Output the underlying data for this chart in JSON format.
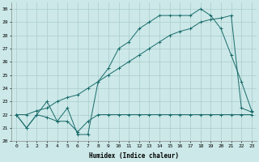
{
  "xlabel": "Humidex (Indice chaleur)",
  "bg_color": "#cce8e8",
  "grid_color": "#aacccc",
  "line_color": "#1a6b6b",
  "xlim": [
    -0.5,
    23.5
  ],
  "ylim": [
    20,
    30.5
  ],
  "xticks": [
    0,
    1,
    2,
    3,
    4,
    5,
    6,
    7,
    8,
    9,
    10,
    11,
    12,
    13,
    14,
    15,
    16,
    17,
    18,
    19,
    20,
    21,
    22,
    23
  ],
  "yticks": [
    20,
    21,
    22,
    23,
    24,
    25,
    26,
    27,
    28,
    29,
    30
  ],
  "line1_x": [
    0,
    1,
    2,
    3,
    4,
    5,
    6,
    7,
    8,
    9,
    10,
    11,
    12,
    13,
    14,
    15,
    16,
    17,
    18,
    19,
    20,
    21,
    22,
    23
  ],
  "line1_y": [
    22.0,
    21.0,
    22.0,
    21.8,
    21.5,
    21.5,
    20.7,
    21.5,
    22.0,
    22.0,
    22.0,
    22.0,
    22.0,
    22.0,
    22.0,
    22.0,
    22.0,
    22.0,
    22.0,
    22.0,
    22.0,
    22.0,
    22.0,
    22.0
  ],
  "line2_x": [
    0,
    1,
    2,
    3,
    4,
    5,
    6,
    7,
    8,
    9,
    10,
    11,
    12,
    13,
    14,
    15,
    16,
    17,
    18,
    19,
    20,
    21,
    22,
    23
  ],
  "line2_y": [
    22.0,
    21.0,
    22.0,
    23.0,
    21.5,
    22.5,
    20.5,
    20.5,
    24.5,
    25.5,
    27.0,
    27.5,
    28.5,
    29.0,
    29.5,
    29.5,
    29.5,
    29.5,
    30.0,
    29.5,
    28.5,
    26.5,
    24.5,
    22.3
  ],
  "line3_x": [
    0,
    1,
    2,
    3,
    4,
    5,
    6,
    7,
    8,
    9,
    10,
    11,
    12,
    13,
    14,
    15,
    16,
    17,
    18,
    19,
    20,
    21,
    22,
    23
  ],
  "line3_y": [
    22.0,
    22.0,
    22.3,
    22.5,
    23.0,
    23.3,
    23.5,
    24.0,
    24.5,
    25.0,
    25.5,
    26.0,
    26.5,
    27.0,
    27.5,
    28.0,
    28.3,
    28.5,
    29.0,
    29.2,
    29.3,
    29.5,
    22.5,
    22.2
  ]
}
